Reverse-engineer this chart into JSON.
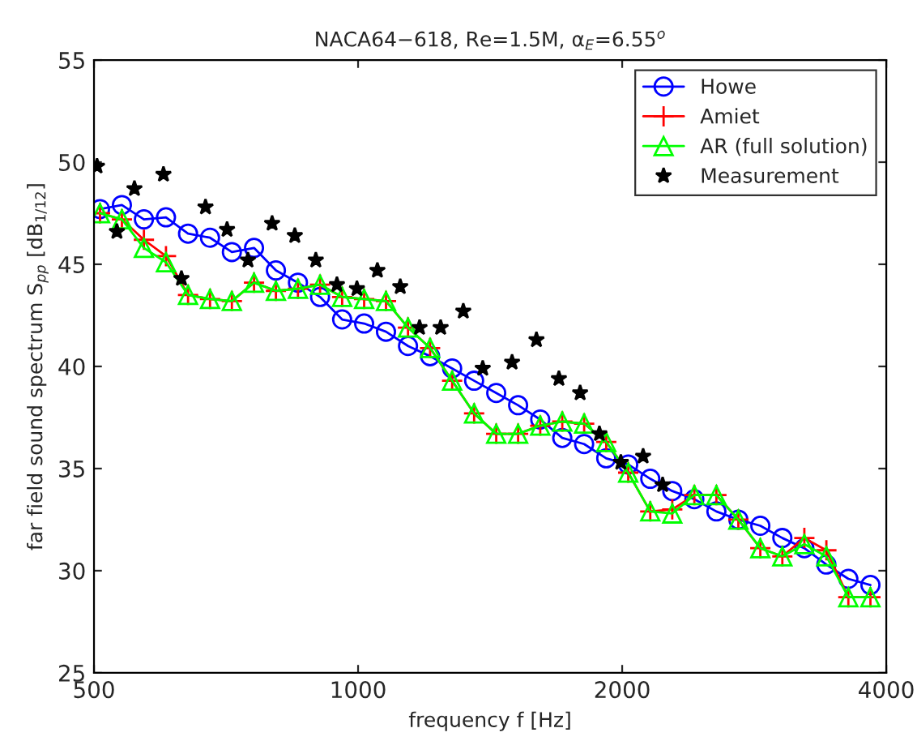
{
  "chart_data": {
    "type": "line",
    "title": "NACA64−618, Re=1.5M, α$_{E}$=6.55$^{o}$",
    "xlabel": "frequency f [Hz]",
    "ylabel": "far field sound spectrum S$_{pp}$ [dB$_{1/12}$]",
    "x": [
      508,
      538,
      570,
      604,
      640,
      678,
      718,
      761,
      806,
      854,
      905,
      959,
      1016,
      1076,
      1140,
      1208,
      1280,
      1356,
      1437,
      1522,
      1613,
      1709,
      1810,
      1918,
      2032,
      2153,
      2281,
      2417,
      2561,
      2713,
      2874,
      3045,
      3226,
      3418,
      3621,
      3837
    ],
    "series": [
      {
        "name": "Howe",
        "color": "#0000ff",
        "marker": "circle",
        "values": [
          47.7,
          47.9,
          47.2,
          47.3,
          46.5,
          46.3,
          45.6,
          45.8,
          44.7,
          44.1,
          43.4,
          42.3,
          42.1,
          41.7,
          41.0,
          40.5,
          39.9,
          39.3,
          38.7,
          38.1,
          37.4,
          36.5,
          36.2,
          35.5,
          35.2,
          34.5,
          33.9,
          33.5,
          32.9,
          32.5,
          32.2,
          31.6,
          31.1,
          30.3,
          29.6,
          29.3
        ]
      },
      {
        "name": "Amiet",
        "color": "#ff0000",
        "marker": "cross",
        "values": [
          47.5,
          47.2,
          46.2,
          45.4,
          43.5,
          43.3,
          43.2,
          44.1,
          43.7,
          43.8,
          44.0,
          43.4,
          43.3,
          43.2,
          41.9,
          40.9,
          39.3,
          37.7,
          36.7,
          36.7,
          37.1,
          37.3,
          37.2,
          36.3,
          34.8,
          32.9,
          33.0,
          33.7,
          33.7,
          32.5,
          31.1,
          30.7,
          31.6,
          31.0,
          28.7,
          28.7
        ]
      },
      {
        "name": "AR (full solution)",
        "color": "#00ff00",
        "marker": "triangle",
        "values": [
          47.5,
          47.2,
          45.8,
          45.1,
          43.5,
          43.3,
          43.2,
          44.1,
          43.7,
          43.8,
          44.0,
          43.4,
          43.3,
          43.2,
          41.9,
          40.9,
          39.3,
          37.7,
          36.7,
          36.7,
          37.1,
          37.3,
          37.2,
          36.3,
          34.8,
          32.9,
          32.8,
          33.7,
          33.7,
          32.5,
          31.1,
          30.7,
          31.3,
          30.7,
          28.7,
          28.7
        ]
      },
      {
        "name": "Measurement",
        "type": "scatter",
        "color": "#000000",
        "marker": "star",
        "x": [
          504,
          531,
          556,
          600,
          629,
          670,
          709,
          749,
          798,
          847,
          895,
          946,
          997,
          1052,
          1117,
          1175,
          1242,
          1318,
          1387,
          1498,
          1597,
          1694,
          1791,
          1884,
          1993,
          2113,
          2224
        ],
        "values": [
          49.8,
          46.6,
          48.7,
          49.4,
          44.3,
          47.8,
          46.7,
          45.2,
          47.0,
          46.4,
          45.2,
          44.0,
          43.8,
          44.7,
          43.9,
          41.9,
          41.9,
          42.7,
          39.9,
          40.2,
          41.3,
          39.4,
          38.7,
          36.7,
          35.3,
          35.6,
          34.2
        ]
      }
    ],
    "log": "x",
    "xlim": [
      500,
      4000
    ],
    "xticks": [
      500,
      1000,
      2000,
      4000
    ],
    "ylim": [
      25,
      55
    ],
    "yticks": [
      25,
      30,
      35,
      40,
      45,
      50,
      55
    ],
    "grid": false,
    "legend": "top right"
  }
}
